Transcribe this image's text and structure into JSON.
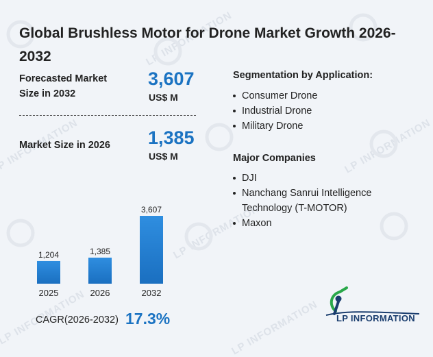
{
  "title": "Global Brushless Motor for Drone Market Growth 2026-2032",
  "forecast": {
    "label": "Forecasted Market Size in 2032",
    "value": "3,607",
    "unit": "US$ M"
  },
  "current": {
    "label": "Market Size in 2026",
    "value": "1,385",
    "unit": "US$ M"
  },
  "segmentation": {
    "heading": "Segmentation by Application:",
    "items": [
      "Consumer Drone",
      "Industrial Drone",
      "Military Drone"
    ]
  },
  "companies": {
    "heading": "Major Companies",
    "items": [
      "DJI",
      "Nanchang Sanrui Intelligence Technology (T-MOTOR)",
      "Maxon"
    ]
  },
  "cagr": {
    "label": "CAGR(2026-2032)",
    "value": "17.3%"
  },
  "logo": {
    "text": "LP INFORMATION",
    "icon": "lp-information-logo-icon"
  },
  "watermark": {
    "text": "LP INFORMATION"
  },
  "colors": {
    "accent": "#1b73c2",
    "bar_top": "#2f8ee0",
    "bar_bottom": "#1a6fc0",
    "logo_green": "#2aa84a",
    "logo_navy": "#1a3d6e"
  },
  "chart_data": {
    "type": "bar",
    "categories": [
      "2025",
      "2026",
      "2032"
    ],
    "values": [
      1204,
      1385,
      3607
    ],
    "value_labels": [
      "1,204",
      "1,385",
      "3,607"
    ],
    "title": "",
    "xlabel": "",
    "ylabel": "",
    "grid": false,
    "legend": "none"
  }
}
